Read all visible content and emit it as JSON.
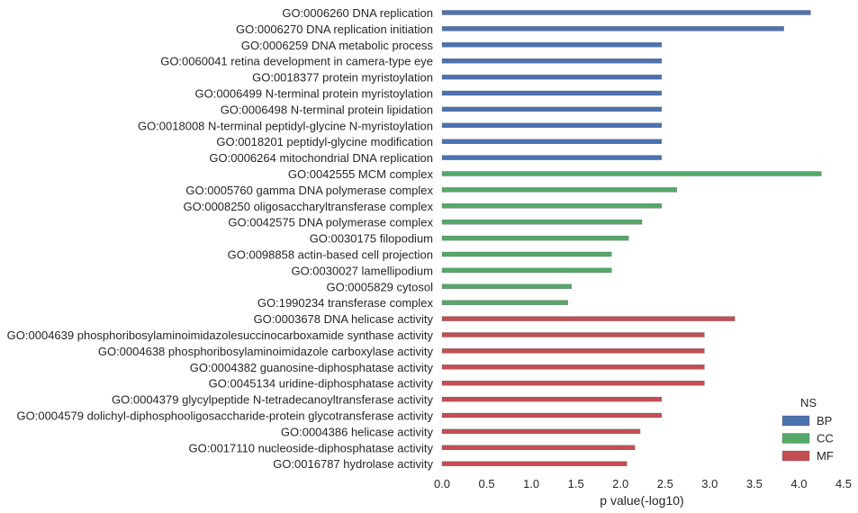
{
  "chart_data": {
    "type": "bar",
    "orientation": "horizontal",
    "xlabel": "p value(-log10)",
    "ylabel": "",
    "xlim": [
      0,
      4.5
    ],
    "xticks": [
      "0.0",
      "0.5",
      "1.0",
      "1.5",
      "2.0",
      "2.5",
      "3.0",
      "3.5",
      "4.0",
      "4.5"
    ],
    "grid": false,
    "legend": {
      "title": "NS",
      "position": "bottom-right"
    },
    "series": [
      {
        "name": "BP",
        "color": "#4c72b0"
      },
      {
        "name": "CC",
        "color": "#55a868"
      },
      {
        "name": "MF",
        "color": "#c44e52"
      }
    ],
    "bars": [
      {
        "label": "GO:0006260 DNA replication",
        "ns": "BP",
        "value": 4.13
      },
      {
        "label": "GO:0006270 DNA replication initiation",
        "ns": "BP",
        "value": 3.83
      },
      {
        "label": "GO:0006259 DNA metabolic process",
        "ns": "BP",
        "value": 2.46
      },
      {
        "label": "GO:0060041 retina development in camera-type eye",
        "ns": "BP",
        "value": 2.46
      },
      {
        "label": "GO:0018377 protein myristoylation",
        "ns": "BP",
        "value": 2.46
      },
      {
        "label": "GO:0006499 N-terminal protein myristoylation",
        "ns": "BP",
        "value": 2.46
      },
      {
        "label": "GO:0006498 N-terminal protein lipidation",
        "ns": "BP",
        "value": 2.46
      },
      {
        "label": "GO:0018008 N-terminal peptidyl-glycine N-myristoylation",
        "ns": "BP",
        "value": 2.46
      },
      {
        "label": "GO:0018201 peptidyl-glycine modification",
        "ns": "BP",
        "value": 2.46
      },
      {
        "label": "GO:0006264 mitochondrial DNA replication",
        "ns": "BP",
        "value": 2.46
      },
      {
        "label": "GO:0042555 MCM complex",
        "ns": "CC",
        "value": 4.25
      },
      {
        "label": "GO:0005760 gamma DNA polymerase complex",
        "ns": "CC",
        "value": 2.63
      },
      {
        "label": "GO:0008250 oligosaccharyltransferase complex",
        "ns": "CC",
        "value": 2.46
      },
      {
        "label": "GO:0042575 DNA polymerase complex",
        "ns": "CC",
        "value": 2.24
      },
      {
        "label": "GO:0030175 filopodium",
        "ns": "CC",
        "value": 2.09
      },
      {
        "label": "GO:0098858 actin-based cell projection",
        "ns": "CC",
        "value": 1.9
      },
      {
        "label": "GO:0030027 lamellipodium",
        "ns": "CC",
        "value": 1.9
      },
      {
        "label": "GO:0005829 cytosol",
        "ns": "CC",
        "value": 1.45
      },
      {
        "label": "GO:1990234 transferase complex",
        "ns": "CC",
        "value": 1.41
      },
      {
        "label": "GO:0003678 DNA helicase activity",
        "ns": "MF",
        "value": 3.28
      },
      {
        "label": "GO:0004639 phosphoribosylaminoimidazolesuccinocarboxamide synthase activity",
        "ns": "MF",
        "value": 2.94
      },
      {
        "label": "GO:0004638 phosphoribosylaminoimidazole carboxylase activity",
        "ns": "MF",
        "value": 2.94
      },
      {
        "label": "GO:0004382 guanosine-diphosphatase activity",
        "ns": "MF",
        "value": 2.94
      },
      {
        "label": "GO:0045134 uridine-diphosphatase activity",
        "ns": "MF",
        "value": 2.94
      },
      {
        "label": "GO:0004379 glycylpeptide N-tetradecanoyltransferase activity",
        "ns": "MF",
        "value": 2.46
      },
      {
        "label": "GO:0004579 dolichyl-diphosphooligosaccharide-protein glycotransferase activity",
        "ns": "MF",
        "value": 2.46
      },
      {
        "label": "GO:0004386 helicase activity",
        "ns": "MF",
        "value": 2.22
      },
      {
        "label": "GO:0017110 nucleoside-diphosphatase activity",
        "ns": "MF",
        "value": 2.16
      },
      {
        "label": "GO:0016787 hydrolase activity",
        "ns": "MF",
        "value": 2.07
      }
    ]
  }
}
